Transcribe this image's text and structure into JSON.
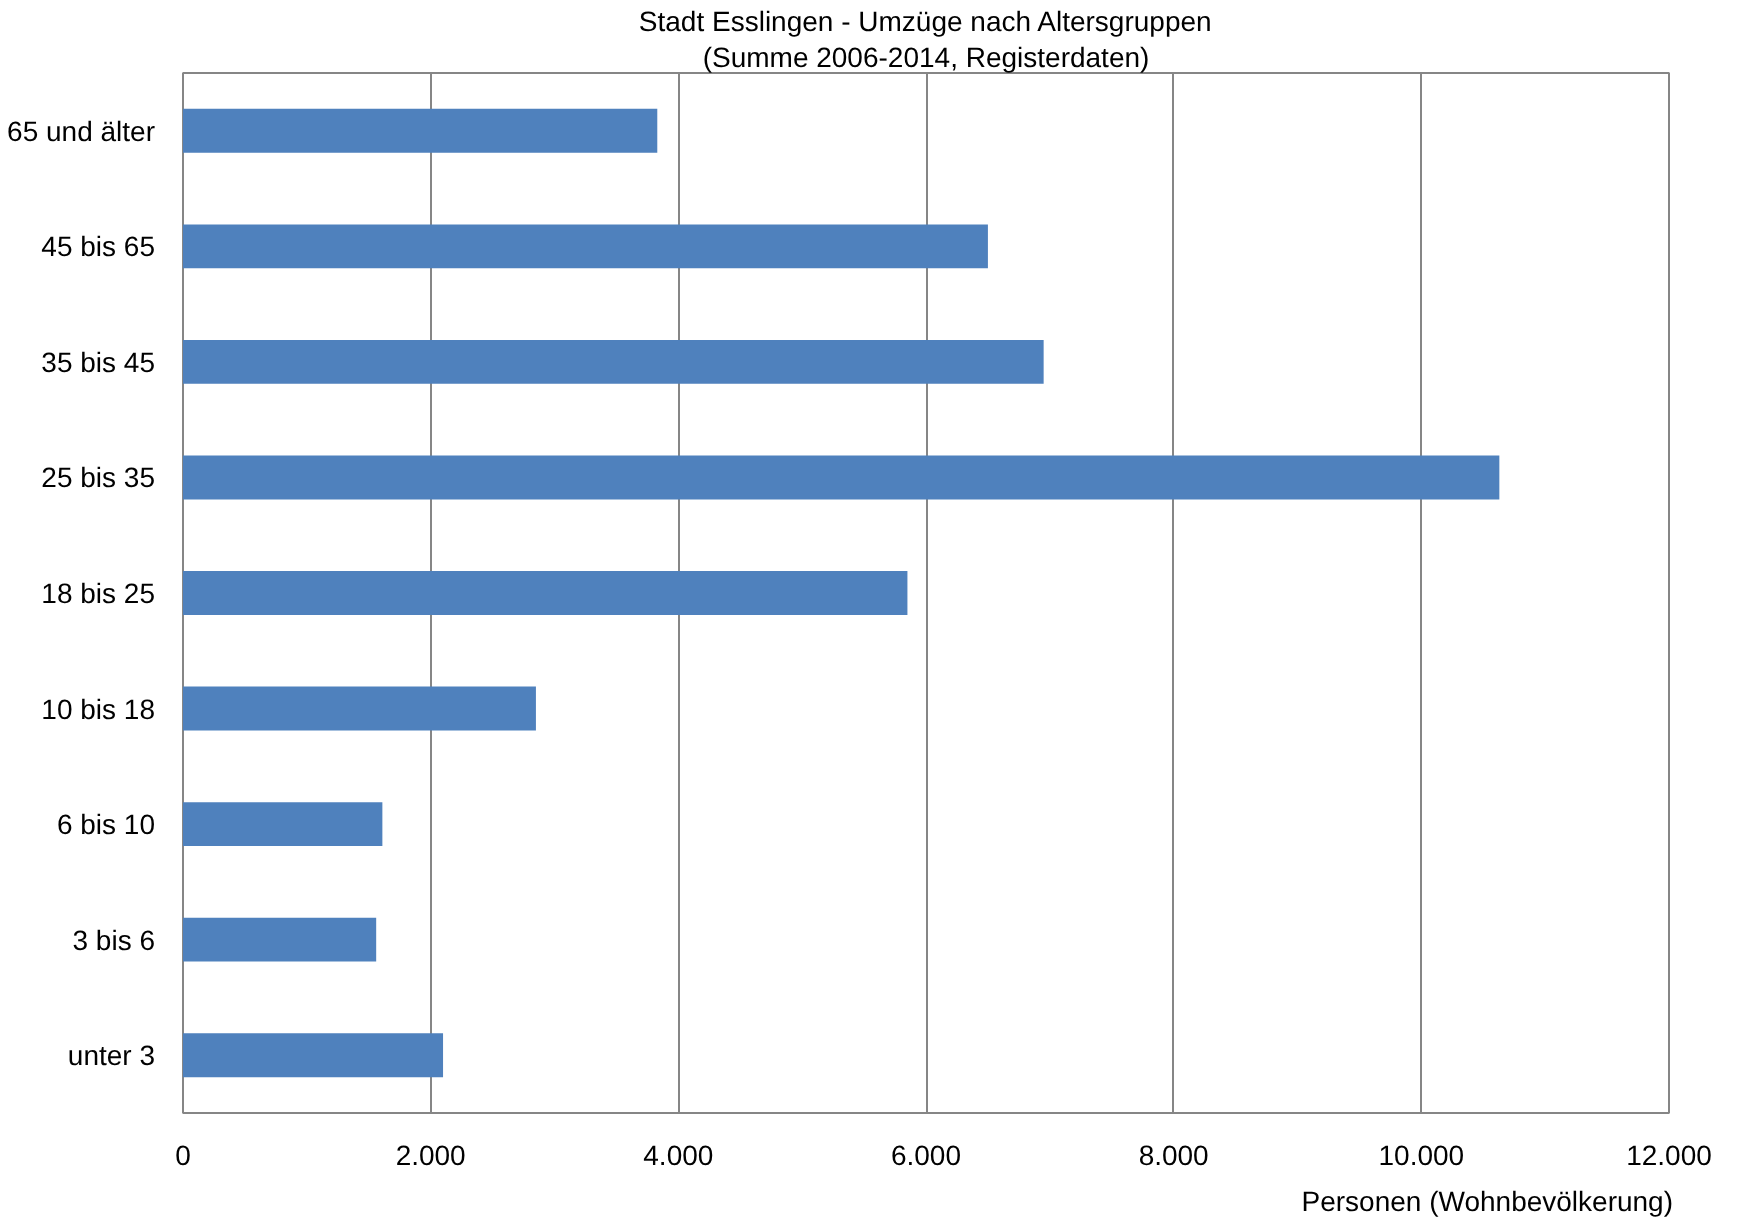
{
  "chart_data": {
    "type": "bar",
    "orientation": "horizontal",
    "title": "Stadt Esslingen - Umzüge nach Altersgruppen",
    "subtitle": "(Summe 2006-2014, Registerdaten)",
    "xlabel": "Personen (Wohnbevölkerung)",
    "categories": [
      "65 und älter",
      "45 bis 65",
      "35 bis 45",
      "25 bis 35",
      "18 bis 25",
      "10 bis 18",
      "6 bis 10",
      "3 bis 6",
      "unter 3"
    ],
    "values": [
      3830,
      6500,
      6950,
      10630,
      5850,
      2850,
      1610,
      1560,
      2100
    ],
    "color": "#4f81bd",
    "xlim": [
      0,
      12000
    ],
    "xticks": [
      0,
      {
        "value": 2000,
        "label": "2.000"
      },
      {
        "value": 4000,
        "label": "4.000"
      },
      {
        "value": 6000,
        "label": "6.000"
      },
      {
        "value": 8000,
        "label": "8.000"
      },
      {
        "value": 10000,
        "label": "10.000"
      },
      {
        "value": 12000,
        "label": "12.000"
      }
    ],
    "grid": "x"
  }
}
